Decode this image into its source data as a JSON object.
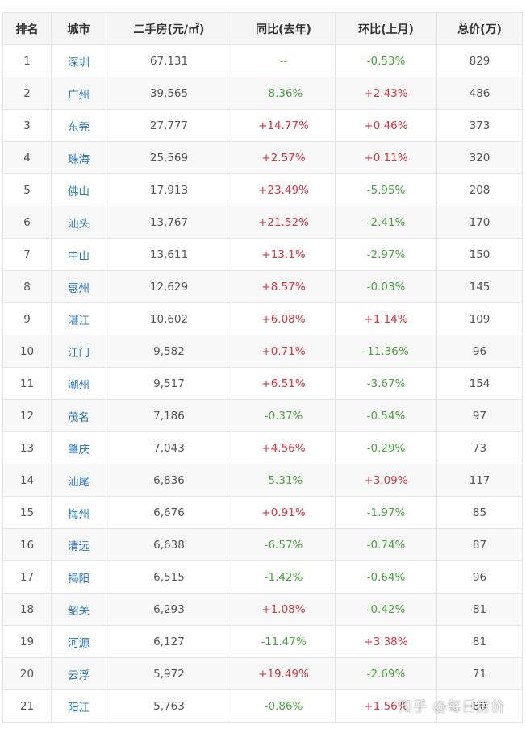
{
  "headers": {
    "rank": "排名",
    "city": "城市",
    "price": "二手房(元/㎡)",
    "yoy": "同比(去年)",
    "mom": "环比(上月)",
    "total": "总价(万)"
  },
  "rows": [
    {
      "rank": "1",
      "city": "深圳",
      "price": "67,131",
      "yoy": "--",
      "mom": "-0.53%",
      "total": "829"
    },
    {
      "rank": "2",
      "city": "广州",
      "price": "39,565",
      "yoy": "-8.36%",
      "mom": "+2.43%",
      "total": "486"
    },
    {
      "rank": "3",
      "city": "东莞",
      "price": "27,777",
      "yoy": "+14.77%",
      "mom": "+0.46%",
      "total": "373"
    },
    {
      "rank": "4",
      "city": "珠海",
      "price": "25,569",
      "yoy": "+2.57%",
      "mom": "+0.11%",
      "total": "320"
    },
    {
      "rank": "5",
      "city": "佛山",
      "price": "17,913",
      "yoy": "+23.49%",
      "mom": "-5.95%",
      "total": "208"
    },
    {
      "rank": "6",
      "city": "汕头",
      "price": "13,767",
      "yoy": "+21.52%",
      "mom": "-2.41%",
      "total": "170"
    },
    {
      "rank": "7",
      "city": "中山",
      "price": "13,611",
      "yoy": "+13.1%",
      "mom": "-2.97%",
      "total": "150"
    },
    {
      "rank": "8",
      "city": "惠州",
      "price": "12,629",
      "yoy": "+8.57%",
      "mom": "-0.03%",
      "total": "145"
    },
    {
      "rank": "9",
      "city": "湛江",
      "price": "10,602",
      "yoy": "+6.08%",
      "mom": "+1.14%",
      "total": "109"
    },
    {
      "rank": "10",
      "city": "江门",
      "price": "9,582",
      "yoy": "+0.71%",
      "mom": "-11.36%",
      "total": "96"
    },
    {
      "rank": "11",
      "city": "潮州",
      "price": "9,517",
      "yoy": "+6.51%",
      "mom": "-3.67%",
      "total": "154"
    },
    {
      "rank": "12",
      "city": "茂名",
      "price": "7,186",
      "yoy": "-0.37%",
      "mom": "-0.54%",
      "total": "97"
    },
    {
      "rank": "13",
      "city": "肇庆",
      "price": "7,043",
      "yoy": "+4.56%",
      "mom": "-0.29%",
      "total": "73"
    },
    {
      "rank": "14",
      "city": "汕尾",
      "price": "6,836",
      "yoy": "-5.31%",
      "mom": "+3.09%",
      "total": "117"
    },
    {
      "rank": "15",
      "city": "梅州",
      "price": "6,676",
      "yoy": "+0.91%",
      "mom": "-1.97%",
      "total": "85"
    },
    {
      "rank": "16",
      "city": "清远",
      "price": "6,638",
      "yoy": "-6.57%",
      "mom": "-0.74%",
      "total": "87"
    },
    {
      "rank": "17",
      "city": "揭阳",
      "price": "6,515",
      "yoy": "-1.42%",
      "mom": "-0.64%",
      "total": "96"
    },
    {
      "rank": "18",
      "city": "韶关",
      "price": "6,293",
      "yoy": "+1.08%",
      "mom": "-0.42%",
      "total": "81"
    },
    {
      "rank": "19",
      "city": "河源",
      "price": "6,127",
      "yoy": "-11.47%",
      "mom": "+3.38%",
      "total": "81"
    },
    {
      "rank": "20",
      "city": "云浮",
      "price": "5,972",
      "yoy": "+19.49%",
      "mom": "-2.69%",
      "total": "71"
    },
    {
      "rank": "21",
      "city": "阳江",
      "price": "5,763",
      "yoy": "-0.86%",
      "mom": "+1.56%",
      "total": "80"
    }
  ],
  "colors": {
    "increase": "#d9363e",
    "decrease": "#4aa33f",
    "city_link": "#2b78c4"
  },
  "watermark": "知乎 @每日房价"
}
